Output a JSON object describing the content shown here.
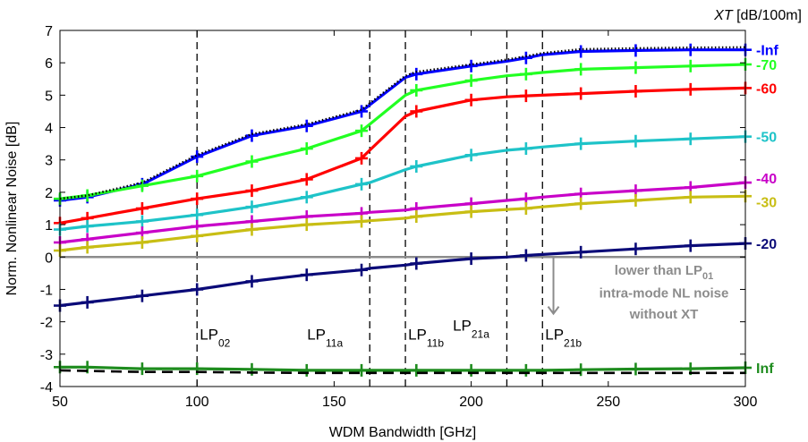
{
  "chart_data": {
    "type": "line",
    "title": "",
    "xlabel": "WDM Bandwidth [GHz]",
    "ylabel": "Norm. Nonlinear Noise [dB]",
    "legend_title": {
      "italic": "XT",
      "rest": " [dB/100m]"
    },
    "xlim": [
      50,
      300
    ],
    "ylim": [
      -4,
      7
    ],
    "xticks": [
      50,
      100,
      150,
      200,
      250,
      300
    ],
    "yticks": [
      -4,
      -3,
      -2,
      -1,
      0,
      1,
      2,
      3,
      4,
      5,
      6,
      7
    ],
    "grid": false,
    "x": [
      50,
      60,
      80,
      100,
      120,
      140,
      160,
      163,
      176,
      180,
      200,
      213,
      220,
      226,
      240,
      260,
      280,
      300
    ],
    "marker_x": [
      50,
      60,
      80,
      100,
      120,
      140,
      160,
      180,
      200,
      220,
      240,
      260,
      280,
      300
    ],
    "series": [
      {
        "name": "-Inf",
        "color": "#0000ff",
        "values": [
          1.75,
          1.85,
          2.25,
          3.1,
          3.75,
          4.05,
          4.5,
          4.7,
          5.55,
          5.65,
          5.9,
          6.05,
          6.15,
          6.25,
          6.35,
          6.38,
          6.4,
          6.4
        ]
      },
      {
        "name": "-70",
        "color": "#22ff22",
        "values": [
          1.8,
          1.9,
          2.2,
          2.5,
          2.95,
          3.35,
          3.9,
          4.1,
          5.0,
          5.15,
          5.45,
          5.6,
          5.65,
          5.7,
          5.8,
          5.85,
          5.9,
          5.95
        ]
      },
      {
        "name": "-60",
        "color": "#ff0000",
        "values": [
          1.05,
          1.2,
          1.5,
          1.8,
          2.05,
          2.4,
          3.05,
          3.3,
          4.35,
          4.5,
          4.85,
          4.95,
          4.98,
          5.0,
          5.05,
          5.12,
          5.18,
          5.22
        ]
      },
      {
        "name": "-50",
        "color": "#1ec3c8",
        "values": [
          0.85,
          0.95,
          1.1,
          1.3,
          1.55,
          1.85,
          2.25,
          2.3,
          2.7,
          2.8,
          3.15,
          3.3,
          3.35,
          3.4,
          3.5,
          3.58,
          3.65,
          3.72
        ]
      },
      {
        "name": "-40",
        "color": "#c800c8",
        "values": [
          0.45,
          0.55,
          0.75,
          0.95,
          1.1,
          1.25,
          1.35,
          1.38,
          1.45,
          1.5,
          1.65,
          1.75,
          1.8,
          1.85,
          1.95,
          2.05,
          2.15,
          2.3
        ]
      },
      {
        "name": "-30",
        "color": "#c8be14",
        "values": [
          0.2,
          0.3,
          0.45,
          0.65,
          0.85,
          1.0,
          1.1,
          1.12,
          1.2,
          1.25,
          1.4,
          1.47,
          1.5,
          1.55,
          1.65,
          1.75,
          1.85,
          1.88
        ]
      },
      {
        "name": "-20",
        "color": "#0a0a78",
        "values": [
          -1.5,
          -1.4,
          -1.2,
          -1.0,
          -0.75,
          -0.55,
          -0.4,
          -0.35,
          -0.25,
          -0.2,
          -0.05,
          0.0,
          0.05,
          0.08,
          0.15,
          0.25,
          0.35,
          0.42
        ]
      },
      {
        "name": "Inf",
        "color": "#1e8c1e",
        "values": [
          -3.4,
          -3.4,
          -3.45,
          -3.45,
          -3.47,
          -3.5,
          -3.5,
          -3.5,
          -3.5,
          -3.5,
          -3.5,
          -3.5,
          -3.5,
          -3.5,
          -3.48,
          -3.46,
          -3.45,
          -3.42
        ]
      }
    ],
    "reference_curves": [
      {
        "style": "dotted",
        "color": "#000000",
        "values": [
          1.8,
          1.9,
          2.3,
          3.15,
          3.8,
          4.1,
          4.55,
          4.75,
          5.6,
          5.72,
          5.95,
          6.1,
          6.2,
          6.3,
          6.42,
          6.45,
          6.47,
          6.48
        ]
      },
      {
        "style": "dashed",
        "color": "#000000",
        "values": [
          -3.5,
          -3.52,
          -3.55,
          -3.55,
          -3.57,
          -3.58,
          -3.58,
          -3.58,
          -3.58,
          -3.58,
          -3.58,
          -3.58,
          -3.58,
          -3.58,
          -3.58,
          -3.58,
          -3.58,
          -3.58
        ]
      }
    ],
    "baseline": {
      "y": 0,
      "color": "#8c8c8c"
    },
    "mode_cutoffs": [
      {
        "x": 100,
        "main": "LP",
        "sub": "02"
      },
      {
        "x": 163,
        "main": "LP",
        "sub": "11a"
      },
      {
        "x": 176,
        "main": "LP",
        "sub": "11b"
      },
      {
        "x": 213,
        "main": "LP",
        "sub": "21a"
      },
      {
        "x": 226,
        "main": "LP",
        "sub": "21b"
      }
    ],
    "annotation": {
      "line1_main": "lower than LP",
      "line1_sub": "01",
      "line2": "intra-mode NL noise",
      "line3": "without XT"
    }
  }
}
